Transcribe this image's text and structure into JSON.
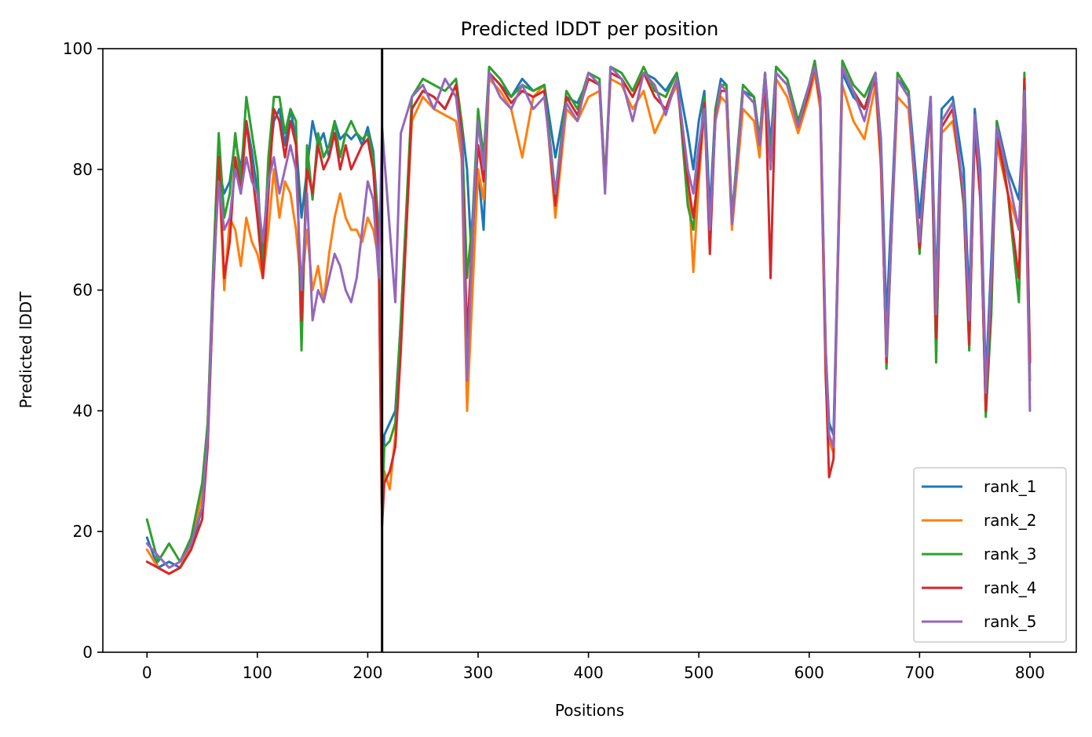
{
  "chart_data": {
    "type": "line",
    "title": "Predicted lDDT per position",
    "xlabel": "Positions",
    "ylabel": "Predicted lDDT",
    "xlim": [
      -40,
      842
    ],
    "ylim": [
      0,
      100
    ],
    "xticks": [
      0,
      100,
      200,
      300,
      400,
      500,
      600,
      700,
      800
    ],
    "yticks": [
      0,
      20,
      40,
      60,
      80,
      100
    ],
    "grid": false,
    "legend_position": "lower-right",
    "chain_break": 213,
    "series": [
      {
        "name": "rank_1",
        "color": "#1f77b4",
        "x": [
          0,
          10,
          20,
          30,
          40,
          50,
          55,
          60,
          65,
          70,
          75,
          80,
          85,
          90,
          95,
          100,
          105,
          110,
          115,
          120,
          125,
          130,
          135,
          140,
          145,
          150,
          155,
          160,
          165,
          170,
          175,
          180,
          185,
          190,
          195,
          200,
          205,
          210,
          213,
          215,
          220,
          225,
          230,
          240,
          250,
          260,
          270,
          280,
          285,
          290,
          295,
          300,
          305,
          310,
          320,
          330,
          340,
          350,
          360,
          370,
          380,
          390,
          400,
          410,
          415,
          420,
          430,
          440,
          450,
          460,
          470,
          480,
          490,
          495,
          500,
          505,
          510,
          515,
          520,
          525,
          530,
          540,
          550,
          555,
          560,
          565,
          570,
          580,
          590,
          600,
          605,
          610,
          615,
          618,
          622,
          630,
          640,
          650,
          660,
          665,
          670,
          680,
          690,
          700,
          710,
          715,
          720,
          730,
          740,
          745,
          750,
          755,
          760,
          765,
          770,
          780,
          790,
          795,
          800
        ],
        "y": [
          19,
          14,
          15,
          14,
          17,
          24,
          35,
          60,
          80,
          76,
          78,
          85,
          80,
          88,
          83,
          76,
          66,
          80,
          88,
          90,
          84,
          90,
          85,
          72,
          80,
          88,
          84,
          86,
          82,
          88,
          85,
          86,
          85,
          86,
          84,
          87,
          83,
          70,
          22,
          36,
          38,
          40,
          55,
          90,
          93,
          92,
          90,
          94,
          88,
          80,
          62,
          80,
          70,
          96,
          94,
          92,
          95,
          93,
          94,
          82,
          92,
          91,
          95,
          94,
          78,
          96,
          95,
          92,
          96,
          95,
          93,
          96,
          86,
          80,
          88,
          93,
          73,
          90,
          95,
          94,
          72,
          93,
          92,
          85,
          96,
          84,
          97,
          95,
          88,
          94,
          97,
          92,
          50,
          38,
          36,
          96,
          92,
          90,
          96,
          85,
          55,
          95,
          93,
          72,
          92,
          60,
          90,
          92,
          80,
          58,
          90,
          80,
          45,
          65,
          88,
          80,
          75,
          90,
          45
        ]
      },
      {
        "name": "rank_2",
        "color": "#ff7f0e",
        "x": [
          0,
          10,
          20,
          30,
          40,
          50,
          55,
          60,
          65,
          70,
          75,
          80,
          85,
          90,
          95,
          100,
          105,
          110,
          115,
          120,
          125,
          130,
          135,
          140,
          145,
          150,
          155,
          160,
          165,
          170,
          175,
          180,
          185,
          190,
          195,
          200,
          205,
          210,
          213,
          215,
          220,
          225,
          230,
          240,
          250,
          260,
          270,
          280,
          285,
          290,
          295,
          300,
          305,
          310,
          320,
          330,
          340,
          350,
          360,
          370,
          380,
          390,
          400,
          410,
          415,
          420,
          430,
          440,
          450,
          460,
          470,
          480,
          490,
          495,
          500,
          505,
          510,
          515,
          520,
          525,
          530,
          540,
          550,
          555,
          560,
          565,
          570,
          580,
          590,
          600,
          605,
          610,
          615,
          618,
          622,
          630,
          640,
          650,
          660,
          665,
          670,
          680,
          690,
          700,
          710,
          715,
          720,
          730,
          740,
          745,
          750,
          755,
          760,
          765,
          770,
          780,
          790,
          795,
          800
        ],
        "y": [
          17,
          14,
          13,
          14,
          18,
          26,
          38,
          62,
          80,
          60,
          72,
          70,
          64,
          72,
          68,
          66,
          62,
          70,
          80,
          72,
          78,
          76,
          70,
          60,
          70,
          60,
          64,
          58,
          66,
          72,
          76,
          72,
          70,
          70,
          68,
          72,
          70,
          65,
          22,
          30,
          27,
          36,
          52,
          88,
          92,
          90,
          89,
          88,
          82,
          40,
          60,
          80,
          75,
          95,
          93,
          90,
          82,
          92,
          94,
          72,
          90,
          88,
          92,
          93,
          78,
          95,
          94,
          90,
          93,
          86,
          90,
          94,
          80,
          63,
          78,
          90,
          68,
          88,
          92,
          91,
          70,
          90,
          88,
          82,
          94,
          80,
          95,
          92,
          86,
          92,
          96,
          90,
          45,
          35,
          33,
          94,
          88,
          85,
          94,
          80,
          50,
          92,
          90,
          68,
          90,
          58,
          86,
          88,
          76,
          52,
          86,
          76,
          40,
          60,
          84,
          76,
          70,
          86,
          42
        ]
      },
      {
        "name": "rank_3",
        "color": "#2ca02c",
        "x": [
          0,
          10,
          20,
          30,
          40,
          50,
          55,
          60,
          65,
          70,
          75,
          80,
          85,
          90,
          95,
          100,
          105,
          110,
          115,
          120,
          125,
          130,
          135,
          140,
          145,
          150,
          155,
          160,
          165,
          170,
          175,
          180,
          185,
          190,
          195,
          200,
          205,
          210,
          213,
          215,
          220,
          225,
          230,
          240,
          250,
          260,
          270,
          280,
          285,
          290,
          295,
          300,
          305,
          310,
          320,
          330,
          340,
          350,
          360,
          370,
          380,
          390,
          400,
          410,
          415,
          420,
          430,
          440,
          450,
          460,
          470,
          480,
          490,
          495,
          500,
          505,
          510,
          515,
          520,
          525,
          530,
          540,
          550,
          555,
          560,
          565,
          570,
          580,
          590,
          600,
          605,
          610,
          615,
          618,
          622,
          630,
          640,
          650,
          660,
          665,
          670,
          680,
          690,
          700,
          710,
          715,
          720,
          730,
          740,
          745,
          750,
          755,
          760,
          765,
          770,
          780,
          790,
          795,
          800
        ],
        "y": [
          22,
          15,
          18,
          15,
          19,
          28,
          38,
          64,
          86,
          72,
          76,
          86,
          78,
          92,
          86,
          80,
          62,
          82,
          92,
          92,
          86,
          90,
          88,
          50,
          84,
          75,
          86,
          82,
          84,
          88,
          82,
          86,
          88,
          86,
          85,
          86,
          82,
          68,
          24,
          34,
          35,
          38,
          55,
          92,
          95,
          94,
          93,
          95,
          88,
          62,
          72,
          90,
          82,
          97,
          95,
          92,
          94,
          93,
          94,
          76,
          93,
          90,
          96,
          95,
          78,
          97,
          96,
          93,
          97,
          93,
          92,
          96,
          74,
          70,
          82,
          92,
          68,
          90,
          94,
          94,
          72,
          94,
          92,
          85,
          96,
          82,
          97,
          95,
          88,
          94,
          98,
          92,
          48,
          36,
          34,
          98,
          94,
          92,
          96,
          84,
          47,
          96,
          93,
          66,
          92,
          48,
          88,
          91,
          74,
          50,
          88,
          76,
          39,
          56,
          88,
          76,
          58,
          96,
          48
        ]
      },
      {
        "name": "rank_4",
        "color": "#d62728",
        "x": [
          0,
          10,
          20,
          30,
          40,
          50,
          55,
          60,
          65,
          70,
          75,
          80,
          85,
          90,
          95,
          100,
          105,
          110,
          115,
          120,
          125,
          130,
          135,
          140,
          145,
          150,
          155,
          160,
          165,
          170,
          175,
          180,
          185,
          190,
          195,
          200,
          205,
          210,
          213,
          215,
          220,
          225,
          230,
          240,
          250,
          260,
          270,
          280,
          285,
          290,
          295,
          300,
          305,
          310,
          320,
          330,
          340,
          350,
          360,
          370,
          380,
          390,
          400,
          410,
          415,
          420,
          430,
          440,
          450,
          460,
          470,
          480,
          490,
          495,
          500,
          505,
          510,
          515,
          520,
          525,
          530,
          540,
          550,
          555,
          560,
          565,
          570,
          580,
          590,
          600,
          605,
          610,
          615,
          618,
          622,
          630,
          640,
          650,
          660,
          665,
          670,
          680,
          690,
          700,
          710,
          715,
          720,
          730,
          740,
          745,
          750,
          755,
          760,
          765,
          770,
          780,
          790,
          795,
          800
        ],
        "y": [
          15,
          14,
          13,
          14,
          17,
          22,
          34,
          60,
          82,
          62,
          68,
          82,
          76,
          88,
          80,
          72,
          62,
          76,
          90,
          88,
          82,
          88,
          84,
          55,
          80,
          76,
          84,
          80,
          82,
          86,
          80,
          84,
          80,
          82,
          84,
          85,
          80,
          66,
          21,
          28,
          30,
          34,
          50,
          90,
          93,
          92,
          90,
          94,
          86,
          52,
          70,
          84,
          78,
          96,
          94,
          91,
          93,
          92,
          93,
          74,
          92,
          89,
          95,
          94,
          77,
          96,
          95,
          92,
          96,
          92,
          90,
          95,
          78,
          72,
          80,
          91,
          66,
          89,
          93,
          93,
          71,
          93,
          91,
          84,
          95,
          62,
          96,
          94,
          87,
          93,
          97,
          91,
          46,
          29,
          32,
          97,
          93,
          90,
          95,
          82,
          48,
          95,
          92,
          67,
          91,
          52,
          87,
          90,
          75,
          51,
          87,
          75,
          40,
          60,
          86,
          76,
          62,
          95,
          48
        ]
      },
      {
        "name": "rank_5",
        "color": "#9467bd",
        "x": [
          0,
          10,
          20,
          30,
          40,
          50,
          55,
          60,
          65,
          70,
          75,
          80,
          85,
          90,
          95,
          100,
          105,
          110,
          115,
          120,
          125,
          130,
          135,
          140,
          145,
          150,
          155,
          160,
          165,
          170,
          175,
          180,
          185,
          190,
          195,
          200,
          205,
          210,
          213,
          215,
          220,
          225,
          230,
          240,
          250,
          260,
          270,
          280,
          285,
          290,
          295,
          300,
          305,
          310,
          320,
          330,
          340,
          350,
          360,
          370,
          380,
          390,
          400,
          410,
          415,
          420,
          430,
          440,
          450,
          460,
          470,
          480,
          490,
          495,
          500,
          505,
          510,
          515,
          520,
          525,
          530,
          540,
          550,
          555,
          560,
          565,
          570,
          580,
          590,
          600,
          605,
          610,
          615,
          618,
          622,
          630,
          640,
          650,
          660,
          665,
          670,
          680,
          690,
          700,
          710,
          715,
          720,
          730,
          740,
          745,
          750,
          755,
          760,
          765,
          770,
          780,
          790,
          795,
          800
        ],
        "y": [
          18,
          16,
          14,
          15,
          18,
          24,
          36,
          62,
          78,
          70,
          72,
          80,
          76,
          82,
          78,
          76,
          68,
          78,
          82,
          76,
          80,
          84,
          80,
          60,
          76,
          55,
          60,
          58,
          62,
          66,
          64,
          60,
          58,
          62,
          70,
          78,
          75,
          62,
          87,
          82,
          70,
          58,
          86,
          92,
          94,
          90,
          95,
          92,
          84,
          45,
          70,
          88,
          80,
          96,
          92,
          90,
          94,
          90,
          92,
          76,
          91,
          88,
          96,
          94,
          76,
          97,
          95,
          88,
          96,
          94,
          89,
          95,
          80,
          76,
          84,
          90,
          70,
          88,
          94,
          93,
          71,
          93,
          91,
          84,
          96,
          80,
          96,
          94,
          87,
          94,
          97,
          92,
          50,
          36,
          34,
          97,
          93,
          88,
          96,
          84,
          49,
          95,
          92,
          68,
          92,
          56,
          88,
          91,
          76,
          55,
          89,
          78,
          43,
          62,
          87,
          79,
          70,
          93,
          40
        ]
      }
    ]
  }
}
